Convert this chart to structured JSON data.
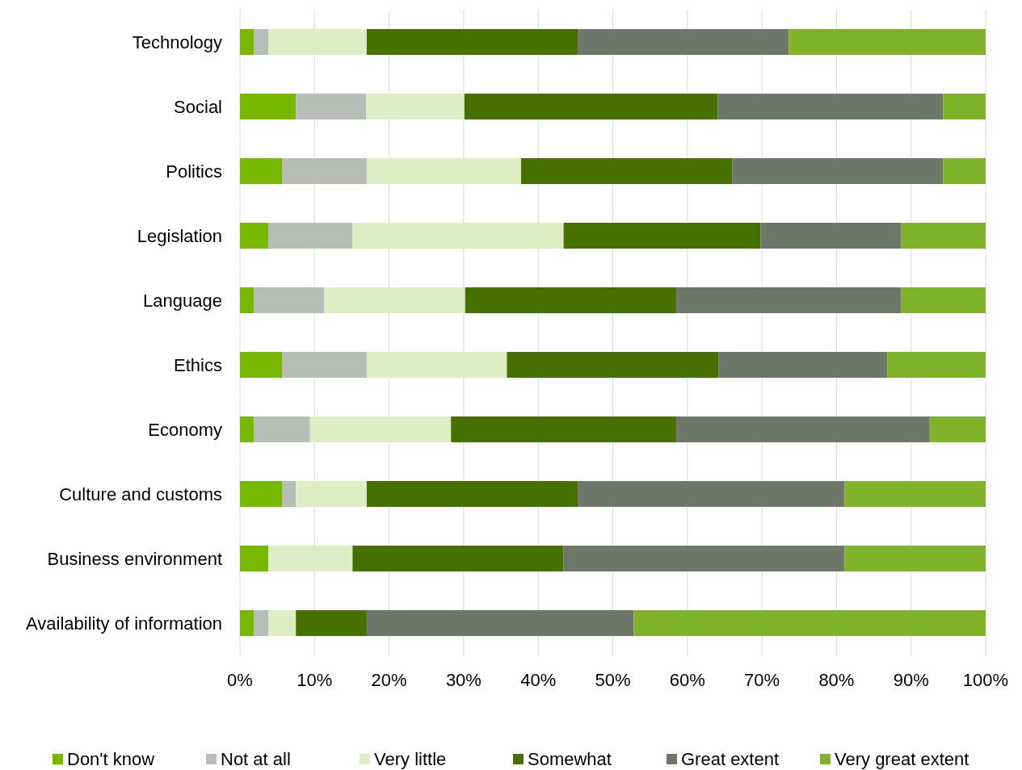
{
  "chart_data": {
    "type": "bar",
    "orientation": "horizontal",
    "stacked": true,
    "categories": [
      "Technology",
      "Social",
      "Politics",
      "Legislation",
      "Language",
      "Ethics",
      "Economy",
      "Culture and customs",
      "Business environment",
      "Availability of information"
    ],
    "series": [
      {
        "name": "Don't know",
        "color": "#76b900",
        "values": [
          1.9,
          7.5,
          5.7,
          3.8,
          1.9,
          5.7,
          1.9,
          5.7,
          3.8,
          1.9
        ]
      },
      {
        "name": "Not at all",
        "color": "#b9bdb7",
        "values": [
          1.9,
          9.4,
          11.3,
          11.3,
          9.4,
          11.3,
          7.5,
          1.8,
          0,
          1.9
        ]
      },
      {
        "name": "Very little",
        "color": "#deedc4",
        "values": [
          13.2,
          13.2,
          20.7,
          28.3,
          18.9,
          18.8,
          18.9,
          9.5,
          11.3,
          3.7
        ]
      },
      {
        "name": "Somewhat",
        "color": "#467000",
        "values": [
          28.3,
          34.0,
          28.3,
          26.4,
          28.3,
          28.4,
          30.2,
          28.3,
          28.3,
          9.5
        ]
      },
      {
        "name": "Great extent",
        "color": "#6e776a",
        "values": [
          28.3,
          30.2,
          28.3,
          18.9,
          30.2,
          22.6,
          34.0,
          35.8,
          37.7,
          35.8
        ]
      },
      {
        "name": "Very great extent",
        "color": "#80b32a",
        "values": [
          26.4,
          5.7,
          5.7,
          11.3,
          11.3,
          13.2,
          7.5,
          18.9,
          18.9,
          47.2
        ]
      }
    ],
    "xlim": [
      0,
      100
    ],
    "xticks": [
      {
        "value": 0,
        "label": "0%"
      },
      {
        "value": 10,
        "label": "10%"
      },
      {
        "value": 20,
        "label": "20%"
      },
      {
        "value": 30,
        "label": "30%"
      },
      {
        "value": 40,
        "label": "40%"
      },
      {
        "value": 50,
        "label": "50%"
      },
      {
        "value": 60,
        "label": "60%"
      },
      {
        "value": 70,
        "label": "70%"
      },
      {
        "value": 80,
        "label": "80%"
      },
      {
        "value": 90,
        "label": "90%"
      },
      {
        "value": 100,
        "label": "100%"
      }
    ],
    "grid": "x",
    "legend": "bottom"
  }
}
